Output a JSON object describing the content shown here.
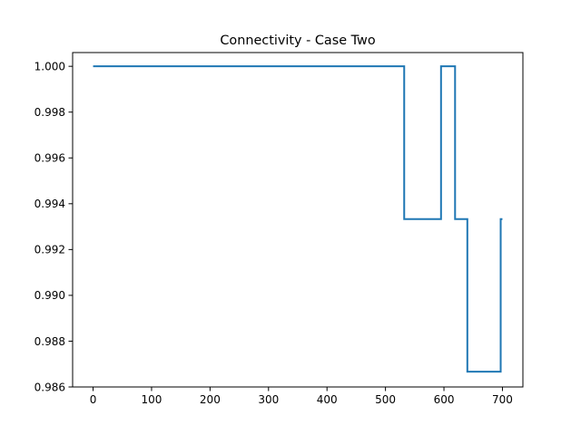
{
  "chart_data": {
    "type": "line",
    "title": "Connectivity - Case Two",
    "xlabel": "",
    "ylabel": "",
    "xlim": [
      -35,
      735
    ],
    "ylim": [
      0.986,
      1.0006
    ],
    "x_ticks": [
      0,
      100,
      200,
      300,
      400,
      500,
      600,
      700
    ],
    "y_ticks": [
      0.986,
      0.988,
      0.99,
      0.992,
      0.994,
      0.996,
      0.998,
      1.0
    ],
    "grid": false,
    "series": [
      {
        "color": "#1f77b4",
        "x": [
          0,
          532,
          532,
          595,
          595,
          619,
          619,
          640,
          640,
          697,
          697,
          700
        ],
        "y": [
          1.0,
          1.0,
          0.99333,
          0.99333,
          1.0,
          1.0,
          0.99333,
          0.99333,
          0.98667,
          0.98667,
          0.99333,
          0.99333
        ]
      }
    ]
  }
}
